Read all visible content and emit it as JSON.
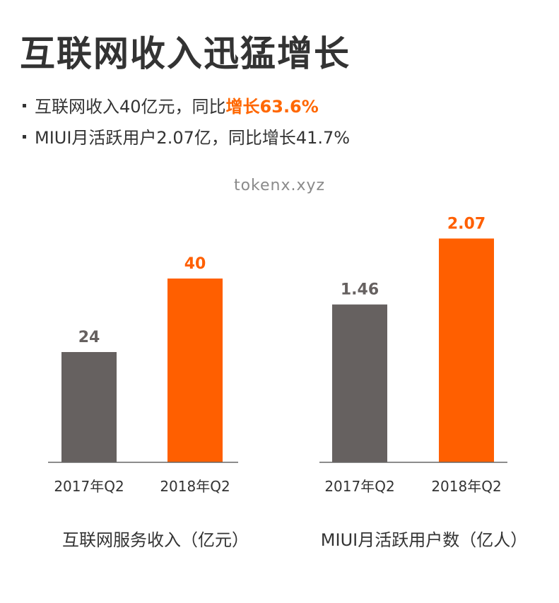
{
  "header": {
    "title": "互联网收入迅猛增长",
    "bullets": [
      {
        "text": "互联网收入40亿元，同比",
        "highlight": "增长63.6%"
      },
      {
        "text": "MIUI月活跃用户2.07亿，同比增长41.7%",
        "highlight": ""
      }
    ]
  },
  "watermark": "tokenx.xyz",
  "colors": {
    "gray": "#666160",
    "orange": "#ff5f00",
    "text": "#333333"
  },
  "chart_data": [
    {
      "type": "bar",
      "title": "互联网服务收入（亿元）",
      "categories": [
        "2017年Q2",
        "2018年Q2"
      ],
      "values": [
        24,
        40
      ],
      "value_labels": [
        "24",
        "40"
      ],
      "ylim": [
        0,
        56
      ]
    },
    {
      "type": "bar",
      "title": "MIUI月活跃用户数（亿人）",
      "categories": [
        "2017年Q2",
        "2018年Q2"
      ],
      "values": [
        1.46,
        2.07
      ],
      "value_labels": [
        "1.46",
        "2.07"
      ],
      "ylim": [
        0,
        2.38
      ]
    }
  ]
}
